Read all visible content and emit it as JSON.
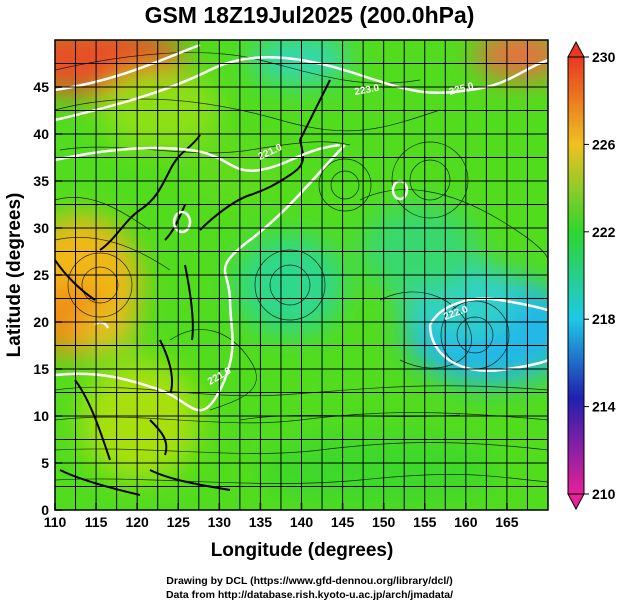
{
  "title": "GSM 18Z19Jul2025 (200.0hPa)",
  "xaxis": {
    "label": "Longitude (degrees)",
    "range": [
      110,
      170
    ],
    "ticks": [
      110,
      115,
      120,
      125,
      130,
      135,
      140,
      145,
      150,
      155,
      160,
      165
    ]
  },
  "yaxis": {
    "label": "Latitude  (degrees)",
    "range": [
      0,
      50
    ],
    "ticks": [
      0,
      5,
      10,
      15,
      20,
      25,
      30,
      35,
      40,
      45
    ]
  },
  "colorbar": {
    "min": 210,
    "max": 230,
    "ticks": [
      230,
      226,
      222,
      218,
      214,
      210
    ],
    "colors": [
      "#e8209a",
      "#2020b0",
      "#1ec8e6",
      "#2ed62e",
      "#f0c020",
      "#e83820"
    ]
  },
  "contour_labels": [
    "223.0",
    "225.0",
    "221.0",
    "222.0",
    "221.0"
  ],
  "credit_line1": "Drawing by DCL (https://www.gfd-dennou.org/library/dcl/)",
  "credit_line2": "Data from http://database.rish.kyoto-u.ac.jp/arch/jmadata/",
  "chart_data": {
    "type": "heatmap",
    "variable": "200 hPa field with streamlines",
    "x": [
      110,
      115,
      120,
      125,
      130,
      135,
      140,
      145,
      150,
      155,
      160,
      165
    ],
    "y": [
      0,
      5,
      10,
      15,
      20,
      25,
      30,
      35,
      40,
      45
    ],
    "grid": true,
    "colorbar_range": [
      210,
      230
    ],
    "contours_shown": [
      221,
      222,
      223,
      225
    ]
  }
}
